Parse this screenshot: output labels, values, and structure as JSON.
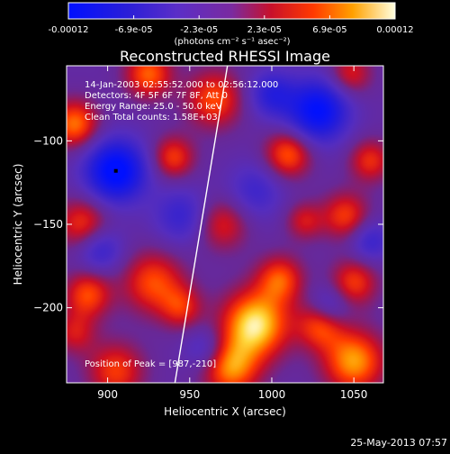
{
  "colorbar": {
    "tick_labels": [
      "-0.00012",
      "-6.9e-05",
      "-2.3e-05",
      "2.3e-05",
      "6.9e-05",
      "0.00012"
    ],
    "unit_label": "(photons cm⁻² s⁻¹ asec⁻²)",
    "range": [
      -0.00012,
      0.00012
    ]
  },
  "chart_data": {
    "type": "heatmap",
    "title": "Reconstructed RHESSI Image",
    "xlabel": "Heliocentric X (arcsec)",
    "ylabel": "Heliocentric Y (arcsec)",
    "xlim": [
      875,
      1068
    ],
    "ylim": [
      -245,
      -55
    ],
    "xticks": [
      900,
      950,
      1000,
      1050
    ],
    "yticks": [
      -100,
      -150,
      -200
    ],
    "annotations": [
      "14-Jan-2003 02:55:52.000 to 02:56:12.000",
      "Detectors: 4F 5F 6F 7F 8F, Att 0",
      "Energy Range: 25.0 - 50.0 keV",
      "Clean    Total counts: 1.58E+03"
    ],
    "peak_label": "Position of Peak = [987,-210]",
    "peak": [
      987,
      -210
    ],
    "limb_line": [
      [
        941,
        -245
      ],
      [
        973,
        -55
      ]
    ],
    "sources": [
      {
        "x": 990,
        "y": -210,
        "value": 1.0,
        "sigma": 14
      },
      {
        "x": 975,
        "y": -236,
        "value": 0.75,
        "sigma": 12
      },
      {
        "x": 1050,
        "y": -232,
        "value": 0.8,
        "sigma": 13
      },
      {
        "x": 1030,
        "y": -210,
        "value": 0.65,
        "sigma": 10
      },
      {
        "x": 1005,
        "y": -183,
        "value": 0.6,
        "sigma": 10
      },
      {
        "x": 1050,
        "y": -185,
        "value": 0.55,
        "sigma": 10
      },
      {
        "x": 928,
        "y": -185,
        "value": 0.6,
        "sigma": 13
      },
      {
        "x": 888,
        "y": -192,
        "value": 0.6,
        "sigma": 10
      },
      {
        "x": 905,
        "y": -238,
        "value": 0.55,
        "sigma": 12
      },
      {
        "x": 945,
        "y": -200,
        "value": 0.45,
        "sigma": 9
      },
      {
        "x": 880,
        "y": -90,
        "value": 0.7,
        "sigma": 10
      },
      {
        "x": 885,
        "y": -150,
        "value": 0.55,
        "sigma": 11
      },
      {
        "x": 880,
        "y": -215,
        "value": 0.4,
        "sigma": 9
      },
      {
        "x": 925,
        "y": -60,
        "value": 0.65,
        "sigma": 10
      },
      {
        "x": 965,
        "y": -75,
        "value": 0.6,
        "sigma": 12
      },
      {
        "x": 940,
        "y": -110,
        "value": 0.55,
        "sigma": 9
      },
      {
        "x": 970,
        "y": -150,
        "value": 0.45,
        "sigma": 11
      },
      {
        "x": 1010,
        "y": -108,
        "value": 0.65,
        "sigma": 10
      },
      {
        "x": 1048,
        "y": -60,
        "value": 0.45,
        "sigma": 9
      },
      {
        "x": 1060,
        "y": -112,
        "value": 0.5,
        "sigma": 9
      },
      {
        "x": 1045,
        "y": -145,
        "value": 0.55,
        "sigma": 10
      },
      {
        "x": 1020,
        "y": -148,
        "value": 0.4,
        "sigma": 8
      },
      {
        "x": 905,
        "y": -118,
        "value": -1.0,
        "sigma": 13
      },
      {
        "x": 1028,
        "y": -82,
        "value": -0.9,
        "sigma": 13
      },
      {
        "x": 1000,
        "y": -72,
        "value": -0.5,
        "sigma": 10
      },
      {
        "x": 895,
        "y": -165,
        "value": -0.45,
        "sigma": 10
      },
      {
        "x": 1035,
        "y": -200,
        "value": -0.45,
        "sigma": 9
      },
      {
        "x": 945,
        "y": -145,
        "value": -0.4,
        "sigma": 12
      },
      {
        "x": 960,
        "y": -225,
        "value": -0.35,
        "sigma": 9
      },
      {
        "x": 1060,
        "y": -160,
        "value": -0.4,
        "sigma": 9
      },
      {
        "x": 990,
        "y": -130,
        "value": -0.35,
        "sigma": 12
      }
    ],
    "marker": [
      905,
      -118
    ]
  },
  "footer": {
    "timestamp": "25-May-2013 07:57"
  }
}
